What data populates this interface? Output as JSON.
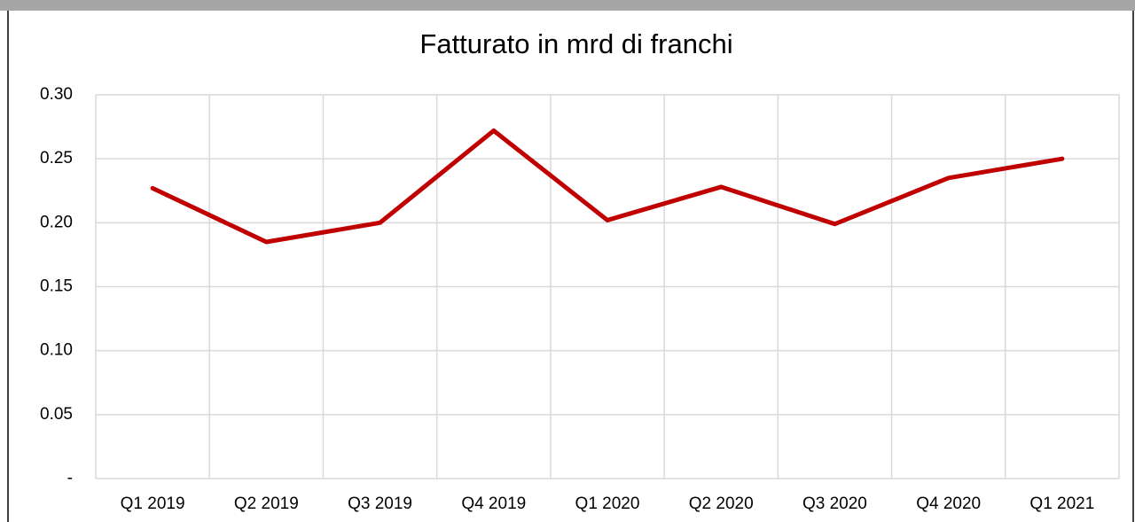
{
  "chart_data": {
    "type": "line",
    "title": "Fatturato in mrd di franchi",
    "categories": [
      "Q1 2019",
      "Q2 2019",
      "Q3 2019",
      "Q4 2019",
      "Q1 2020",
      "Q2 2020",
      "Q3 2020",
      "Q4 2020",
      "Q1 2021"
    ],
    "values": [
      0.227,
      0.185,
      0.2,
      0.272,
      0.202,
      0.228,
      0.199,
      0.235,
      0.25
    ],
    "color": "#c00000",
    "ylim": [
      0,
      0.3
    ],
    "yticks": [
      {
        "value": 0,
        "label": "-"
      },
      0.05,
      {
        "value": 0.1,
        "label": "0.10"
      },
      0.15,
      {
        "value": 0.2,
        "label": "0.20"
      },
      0.25,
      {
        "value": 0.3,
        "label": "0.30"
      }
    ],
    "grid": true
  }
}
